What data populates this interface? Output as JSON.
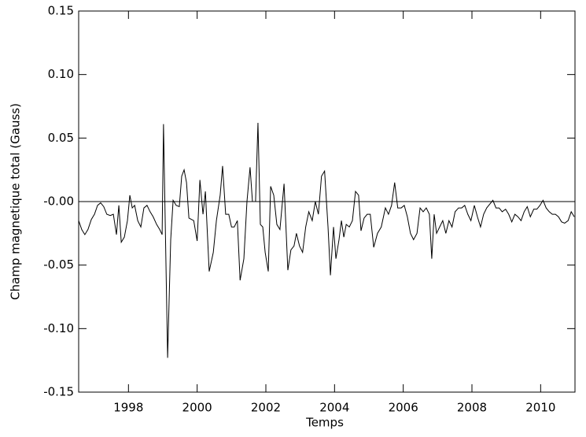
{
  "chart_data": {
    "type": "line",
    "xlabel": "Temps",
    "ylabel": "Champ magnetique total (Gauss)",
    "color": "#000000",
    "reference_y": 0,
    "xlim": [
      1996.55,
      2011.0
    ],
    "ylim": [
      -0.15,
      0.15
    ],
    "xticks": [
      1998,
      2000,
      2002,
      2004,
      2006,
      2008,
      2010
    ],
    "yticks": [
      {
        "value": -0.15,
        "label": "-0.15"
      },
      {
        "value": -0.1,
        "label": "-0.10"
      },
      {
        "value": -0.05,
        "label": "-0.05"
      },
      {
        "value": 0,
        "label": "-0.00"
      },
      {
        "value": 0.05,
        "label": "0.05"
      },
      {
        "value": 0.1,
        "label": "0.10"
      },
      {
        "value": 0.15,
        "label": "0.15"
      }
    ],
    "x": [
      1996.55,
      1996.64,
      1996.73,
      1996.82,
      1996.92,
      1997.01,
      1997.1,
      1997.19,
      1997.28,
      1997.37,
      1997.47,
      1997.56,
      1997.65,
      1997.72,
      1997.79,
      1997.88,
      1997.97,
      1998.04,
      1998.11,
      1998.18,
      1998.27,
      1998.36,
      1998.45,
      1998.54,
      1998.63,
      1998.72,
      1998.82,
      1998.91,
      1998.98,
      1999.02,
      1999.14,
      1999.23,
      1999.3,
      1999.39,
      1999.48,
      1999.55,
      1999.62,
      1999.69,
      1999.76,
      1999.9,
      2000.0,
      2000.08,
      2000.17,
      2000.24,
      2000.35,
      2000.47,
      2000.56,
      2000.67,
      2000.74,
      2000.83,
      2000.92,
      2001.0,
      2001.08,
      2001.17,
      2001.25,
      2001.36,
      2001.45,
      2001.54,
      2001.61,
      2001.7,
      2001.77,
      2001.84,
      2001.91,
      2001.98,
      2002.07,
      2002.14,
      2002.23,
      2002.32,
      2002.41,
      2002.53,
      2002.64,
      2002.73,
      2002.82,
      2002.89,
      2002.98,
      2003.07,
      2003.16,
      2003.25,
      2003.35,
      2003.44,
      2003.53,
      2003.62,
      2003.71,
      2003.81,
      2003.88,
      2003.97,
      2004.04,
      2004.13,
      2004.2,
      2004.27,
      2004.34,
      2004.43,
      2004.52,
      2004.61,
      2004.7,
      2004.77,
      2004.86,
      2004.95,
      2005.04,
      2005.14,
      2005.25,
      2005.36,
      2005.48,
      2005.57,
      2005.66,
      2005.75,
      2005.84,
      2005.94,
      2006.03,
      2006.12,
      2006.21,
      2006.3,
      2006.4,
      2006.49,
      2006.58,
      2006.67,
      2006.76,
      2006.83,
      2006.9,
      2006.97,
      2007.06,
      2007.15,
      2007.24,
      2007.33,
      2007.42,
      2007.51,
      2007.61,
      2007.7,
      2007.79,
      2007.88,
      2007.97,
      2008.07,
      2008.16,
      2008.25,
      2008.34,
      2008.43,
      2008.52,
      2008.61,
      2008.7,
      2008.79,
      2008.88,
      2008.98,
      2009.07,
      2009.16,
      2009.25,
      2009.34,
      2009.43,
      2009.52,
      2009.61,
      2009.7,
      2009.8,
      2009.89,
      2009.98,
      2010.07,
      2010.16,
      2010.25,
      2010.34,
      2010.43,
      2010.52,
      2010.61,
      2010.7,
      2010.8,
      2010.89,
      2010.98
    ],
    "values": [
      -0.015,
      -0.022,
      -0.026,
      -0.022,
      -0.014,
      -0.01,
      -0.003,
      -0.001,
      -0.004,
      -0.01,
      -0.011,
      -0.01,
      -0.026,
      -0.003,
      -0.032,
      -0.028,
      -0.015,
      0.005,
      -0.005,
      -0.003,
      -0.015,
      -0.02,
      -0.005,
      -0.003,
      -0.008,
      -0.012,
      -0.018,
      -0.022,
      -0.026,
      0.061,
      -0.123,
      -0.03,
      0.001,
      -0.003,
      -0.004,
      0.02,
      0.025,
      0.015,
      -0.013,
      -0.015,
      -0.031,
      0.017,
      -0.01,
      0.008,
      -0.055,
      -0.04,
      -0.015,
      0.005,
      0.028,
      -0.01,
      -0.01,
      -0.02,
      -0.02,
      -0.015,
      -0.062,
      -0.045,
      0.0,
      0.027,
      0.0,
      0.0,
      0.062,
      -0.018,
      -0.02,
      -0.04,
      -0.055,
      0.012,
      0.005,
      -0.018,
      -0.022,
      0.014,
      -0.054,
      -0.038,
      -0.035,
      -0.025,
      -0.035,
      -0.04,
      -0.02,
      -0.008,
      -0.015,
      0.0,
      -0.01,
      0.02,
      0.024,
      -0.02,
      -0.058,
      -0.02,
      -0.045,
      -0.03,
      -0.015,
      -0.028,
      -0.018,
      -0.02,
      -0.015,
      0.008,
      0.005,
      -0.023,
      -0.013,
      -0.01,
      -0.01,
      -0.036,
      -0.025,
      -0.02,
      -0.005,
      -0.01,
      -0.003,
      0.015,
      -0.005,
      -0.005,
      -0.003,
      -0.012,
      -0.025,
      -0.03,
      -0.025,
      -0.005,
      -0.008,
      -0.005,
      -0.01,
      -0.045,
      -0.01,
      -0.025,
      -0.02,
      -0.015,
      -0.025,
      -0.015,
      -0.02,
      -0.008,
      -0.005,
      -0.005,
      -0.003,
      -0.01,
      -0.015,
      -0.003,
      -0.012,
      -0.02,
      -0.01,
      -0.005,
      -0.002,
      0.001,
      -0.005,
      -0.005,
      -0.008,
      -0.006,
      -0.01,
      -0.016,
      -0.01,
      -0.012,
      -0.015,
      -0.008,
      -0.004,
      -0.012,
      -0.006,
      -0.006,
      -0.003,
      0.001,
      -0.005,
      -0.008,
      -0.01,
      -0.01,
      -0.012,
      -0.016,
      -0.017,
      -0.015,
      -0.008,
      -0.012
    ]
  }
}
